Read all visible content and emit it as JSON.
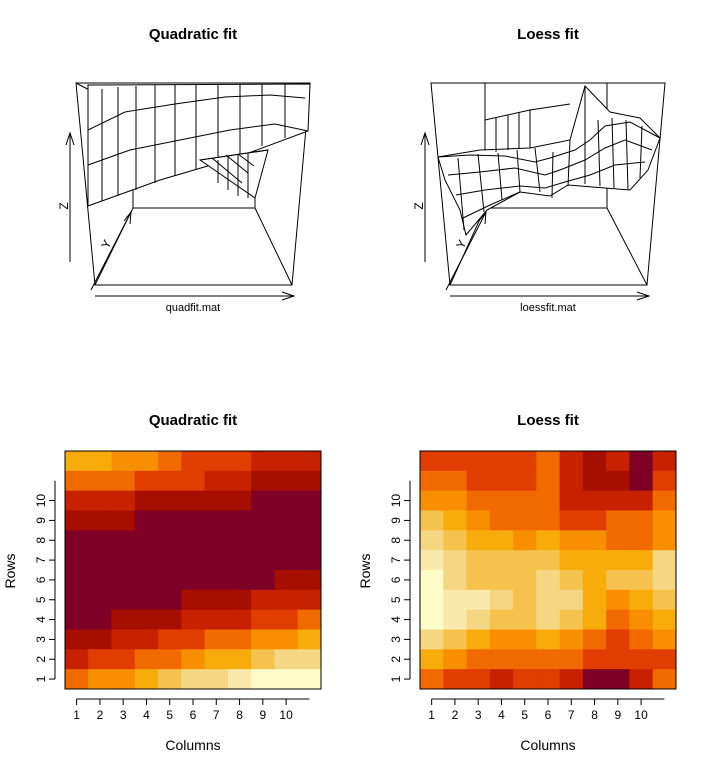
{
  "chart_data": [
    {
      "type": "surface",
      "title": "Quadratic fit",
      "xlabel": "quadfit.mat",
      "ylabel": "Y",
      "zlabel": "Z"
    },
    {
      "type": "surface",
      "title": "Loess fit",
      "xlabel": "loessfit.mat",
      "ylabel": "Y",
      "zlabel": "Z"
    },
    {
      "type": "heatmap",
      "title": "Quadratic fit",
      "xlabel": "Columns",
      "ylabel": "Rows",
      "xticks": [
        "1",
        "2",
        "3",
        "4",
        "5",
        "6",
        "7",
        "8",
        "9",
        "10"
      ],
      "yticks": [
        "1",
        "2",
        "3",
        "4",
        "5",
        "6",
        "7",
        "8",
        "9",
        "10"
      ],
      "palette": [
        "#7F0027",
        "#A60F00",
        "#C62200",
        "#E03D00",
        "#F06A00",
        "#F88F00",
        "#F8AC0C",
        "#F6C24E",
        "#F5D683",
        "#FAE9AB",
        "#FFFCC8"
      ],
      "grid": [
        [
          6,
          6,
          5,
          5,
          4,
          3,
          3,
          3,
          2,
          2,
          2
        ],
        [
          4,
          4,
          4,
          3,
          3,
          3,
          2,
          2,
          1,
          1,
          1
        ],
        [
          2,
          2,
          2,
          1,
          1,
          1,
          1,
          1,
          0,
          0,
          0
        ],
        [
          1,
          1,
          1,
          0,
          0,
          0,
          0,
          0,
          0,
          0,
          0
        ],
        [
          0,
          0,
          0,
          0,
          0,
          0,
          0,
          0,
          0,
          0,
          0
        ],
        [
          0,
          0,
          0,
          0,
          0,
          0,
          0,
          0,
          0,
          0,
          0
        ],
        [
          0,
          0,
          0,
          0,
          0,
          0,
          0,
          0,
          0,
          1,
          1
        ],
        [
          0,
          0,
          0,
          0,
          0,
          1,
          1,
          1,
          2,
          2,
          2
        ],
        [
          0,
          0,
          1,
          1,
          1,
          2,
          2,
          2,
          3,
          3,
          4
        ],
        [
          1,
          1,
          2,
          2,
          3,
          3,
          4,
          4,
          5,
          5,
          6
        ],
        [
          2,
          3,
          3,
          4,
          4,
          5,
          6,
          6,
          7,
          8,
          8
        ],
        [
          4,
          5,
          5,
          6,
          7,
          8,
          8,
          9,
          10,
          10,
          10
        ]
      ]
    },
    {
      "type": "heatmap",
      "title": "Loess fit",
      "xlabel": "Columns",
      "ylabel": "Rows",
      "xticks": [
        "1",
        "2",
        "3",
        "4",
        "5",
        "6",
        "7",
        "8",
        "9",
        "10"
      ],
      "yticks": [
        "1",
        "2",
        "3",
        "4",
        "5",
        "6",
        "7",
        "8",
        "9",
        "10"
      ],
      "palette": [
        "#7F0027",
        "#A60F00",
        "#C62200",
        "#E03D00",
        "#F06A00",
        "#F88F00",
        "#F8AC0C",
        "#F6C24E",
        "#F5D683",
        "#FAE9AB",
        "#FFFCC8"
      ],
      "grid": [
        [
          3,
          3,
          3,
          3,
          3,
          4,
          2,
          1,
          2,
          0,
          2
        ],
        [
          4,
          4,
          3,
          3,
          3,
          4,
          2,
          1,
          1,
          0,
          3
        ],
        [
          5,
          5,
          4,
          4,
          4,
          4,
          2,
          2,
          2,
          2,
          4
        ],
        [
          7,
          6,
          5,
          4,
          4,
          4,
          3,
          3,
          4,
          4,
          5
        ],
        [
          8,
          7,
          6,
          6,
          5,
          6,
          5,
          5,
          4,
          4,
          5
        ],
        [
          9,
          8,
          7,
          7,
          7,
          7,
          6,
          6,
          6,
          6,
          8
        ],
        [
          10,
          8,
          7,
          7,
          7,
          8,
          7,
          6,
          7,
          7,
          8
        ],
        [
          10,
          9,
          9,
          8,
          7,
          8,
          8,
          6,
          5,
          6,
          7
        ],
        [
          10,
          9,
          8,
          7,
          7,
          8,
          7,
          6,
          4,
          5,
          6
        ],
        [
          8,
          7,
          6,
          5,
          5,
          6,
          5,
          4,
          3,
          4,
          5
        ],
        [
          6,
          5,
          4,
          4,
          4,
          4,
          4,
          3,
          3,
          3,
          3
        ],
        [
          4,
          3,
          3,
          2,
          3,
          3,
          2,
          0,
          0,
          2,
          4
        ]
      ]
    }
  ]
}
